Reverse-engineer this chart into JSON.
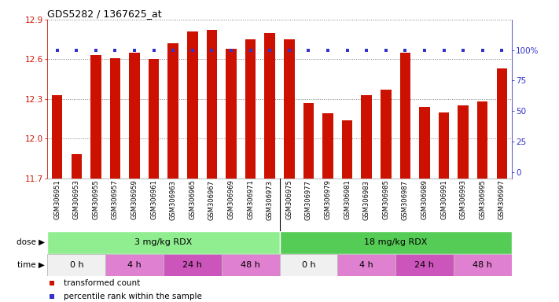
{
  "title": "GDS5282 / 1367625_at",
  "samples": [
    "GSM306951",
    "GSM306953",
    "GSM306955",
    "GSM306957",
    "GSM306959",
    "GSM306961",
    "GSM306963",
    "GSM306965",
    "GSM306967",
    "GSM306969",
    "GSM306971",
    "GSM306973",
    "GSM306975",
    "GSM306977",
    "GSM306979",
    "GSM306981",
    "GSM306983",
    "GSM306985",
    "GSM306987",
    "GSM306989",
    "GSM306991",
    "GSM306993",
    "GSM306995",
    "GSM306997"
  ],
  "bar_values": [
    12.33,
    11.88,
    12.63,
    12.61,
    12.65,
    12.6,
    12.72,
    12.81,
    12.82,
    12.68,
    12.75,
    12.8,
    12.75,
    12.27,
    12.19,
    12.14,
    12.33,
    12.37,
    12.65,
    12.24,
    12.2,
    12.25,
    12.28,
    12.53
  ],
  "bar_color": "#cc1100",
  "percentile_color": "#3333cc",
  "ylim": [
    11.7,
    12.9
  ],
  "y_ticks": [
    11.7,
    12.0,
    12.3,
    12.6,
    12.9
  ],
  "right_ylabels": [
    "0",
    "25",
    "50",
    "75",
    "100%"
  ],
  "dose_groups": [
    {
      "label": "3 mg/kg RDX",
      "start": 0,
      "end": 12,
      "color": "#90ee90"
    },
    {
      "label": "18 mg/kg RDX",
      "start": 12,
      "end": 24,
      "color": "#55cc55"
    }
  ],
  "time_groups": [
    {
      "label": "0 h",
      "start": 0,
      "end": 3,
      "color": "#f0f0f0"
    },
    {
      "label": "4 h",
      "start": 3,
      "end": 6,
      "color": "#e080d0"
    },
    {
      "label": "24 h",
      "start": 6,
      "end": 9,
      "color": "#cc55bb"
    },
    {
      "label": "48 h",
      "start": 9,
      "end": 12,
      "color": "#e080d0"
    },
    {
      "label": "0 h",
      "start": 12,
      "end": 15,
      "color": "#f0f0f0"
    },
    {
      "label": "4 h",
      "start": 15,
      "end": 18,
      "color": "#e080d0"
    },
    {
      "label": "24 h",
      "start": 18,
      "end": 21,
      "color": "#cc55bb"
    },
    {
      "label": "48 h",
      "start": 21,
      "end": 24,
      "color": "#e080d0"
    }
  ],
  "legend_items": [
    {
      "label": "transformed count",
      "color": "#cc1100",
      "marker": "s"
    },
    {
      "label": "percentile rank within the sample",
      "color": "#3333cc",
      "marker": "s"
    }
  ],
  "axis_label_color_left": "#cc1100",
  "axis_label_color_right": "#3333cc",
  "xtick_bg": "#d4d4d4"
}
